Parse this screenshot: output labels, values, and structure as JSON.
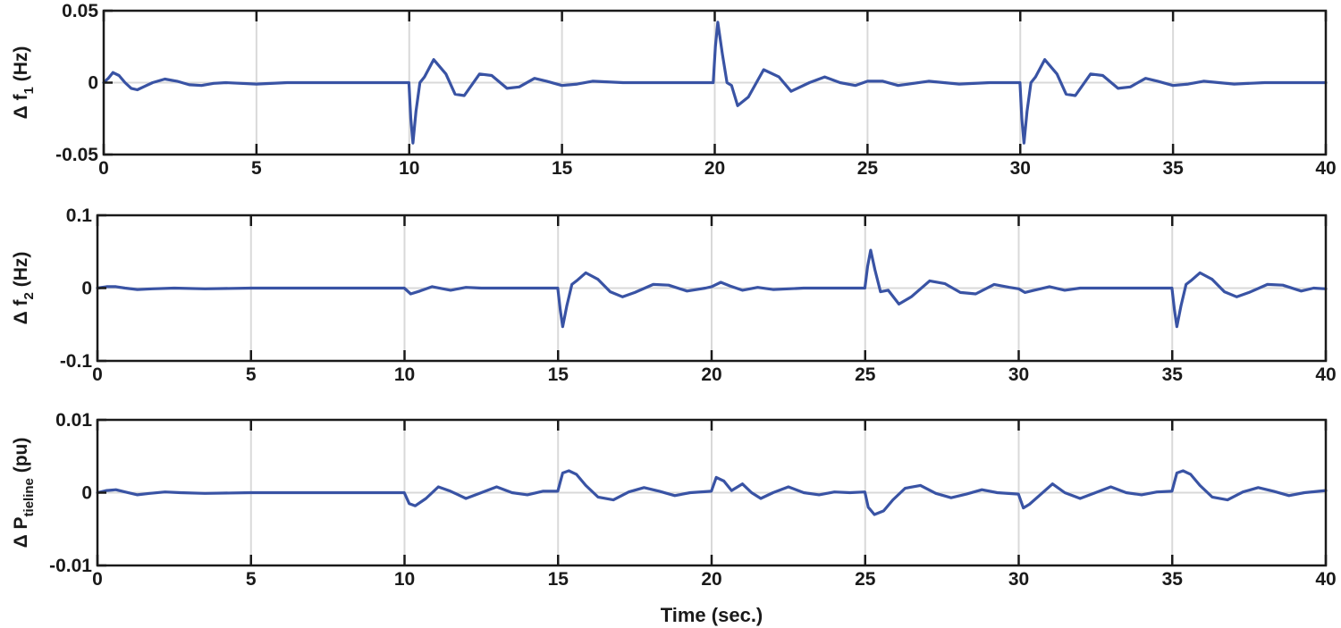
{
  "chart_data": [
    {
      "type": "line",
      "ylabel": {
        "prefix": "Δ f",
        "sub": "1",
        "suffix": " (Hz)"
      },
      "xlabel": "",
      "xlim": [
        0,
        40
      ],
      "ylim": [
        -0.05,
        0.05
      ],
      "xticks": [
        "0",
        "5",
        "10",
        "15",
        "20",
        "25",
        "30",
        "35",
        "40"
      ],
      "yticks": [
        "0.05",
        "0",
        "-0.05"
      ],
      "grid": "vertical",
      "line_color": "#3953a4",
      "grid_color": "#d9d9d9",
      "series": [
        {
          "x": [
            0,
            0.15,
            0.3,
            0.5,
            0.7,
            0.9,
            1.1,
            1.3,
            1.6,
            2.0,
            2.4,
            2.8,
            3.2,
            3.6,
            4.0,
            5,
            6,
            7,
            8,
            9,
            9.99,
            10.05,
            10.12,
            10.22,
            10.35,
            10.5,
            10.8,
            11.2,
            11.5,
            11.8,
            12.3,
            12.7,
            13.2,
            13.6,
            14.1,
            14.5,
            15,
            15.5,
            16,
            17,
            18,
            19,
            19.95,
            20.02,
            20.1,
            20.25,
            20.4,
            20.55,
            20.75,
            21.1,
            21.6,
            22.1,
            22.5,
            23.1,
            23.6,
            24.1,
            24.6,
            25,
            25.5,
            26,
            27,
            28,
            29,
            29.99,
            30.05,
            30.12,
            30.22,
            30.35,
            30.5,
            30.8,
            31.2,
            31.5,
            31.8,
            32.3,
            32.7,
            33.2,
            33.6,
            34.1,
            34.5,
            35,
            35.5,
            36,
            37,
            38,
            39,
            40
          ],
          "y": [
            0,
            0.003,
            0.007,
            0.005,
            0.0,
            -0.004,
            -0.005,
            -0.003,
            0.0,
            0.0025,
            0.001,
            -0.0015,
            -0.002,
            -0.0005,
            0.0,
            -0.001,
            0.0,
            0.0,
            0.0,
            0.0,
            0.0,
            -0.025,
            -0.042,
            -0.02,
            0.0,
            0.004,
            0.016,
            0.006,
            -0.008,
            -0.009,
            0.006,
            0.005,
            -0.004,
            -0.003,
            0.003,
            0.001,
            -0.002,
            -0.001,
            0.001,
            0.0,
            0.0,
            0.0,
            0.0,
            0.025,
            0.042,
            0.02,
            0.0,
            -0.002,
            -0.016,
            -0.01,
            0.009,
            0.004,
            -0.006,
            0.0,
            0.004,
            0.0,
            -0.002,
            0.001,
            0.001,
            -0.002,
            0.001,
            -0.001,
            0.0,
            0.0,
            -0.025,
            -0.042,
            -0.02,
            0.0,
            0.004,
            0.016,
            0.006,
            -0.008,
            -0.009,
            0.006,
            0.005,
            -0.004,
            -0.003,
            0.003,
            0.001,
            -0.002,
            -0.001,
            0.001,
            -0.001,
            0.0,
            0.0,
            0.0
          ]
        }
      ]
    },
    {
      "type": "line",
      "ylabel": {
        "prefix": "Δ f",
        "sub": "2",
        "suffix": " (Hz)"
      },
      "xlabel": "",
      "xlim": [
        0,
        40
      ],
      "ylim": [
        -0.1,
        0.1
      ],
      "xticks": [
        "0",
        "5",
        "10",
        "15",
        "20",
        "25",
        "30",
        "35",
        "40"
      ],
      "yticks": [
        "0.1",
        "0",
        "-0.1"
      ],
      "grid": "vertical",
      "line_color": "#3953a4",
      "grid_color": "#d9d9d9",
      "series": [
        {
          "x": [
            0,
            0.3,
            0.6,
            0.9,
            1.3,
            1.8,
            2.5,
            3.5,
            5,
            7,
            9,
            9.99,
            10.2,
            10.5,
            10.9,
            11.5,
            12,
            12.5,
            13,
            14,
            14.99,
            15.07,
            15.15,
            15.28,
            15.45,
            15.6,
            15.9,
            16.3,
            16.7,
            17.1,
            17.5,
            18.1,
            18.6,
            19.2,
            19.8,
            20,
            20.3,
            20.6,
            21,
            21.5,
            22,
            23,
            24,
            24.99,
            25.08,
            25.18,
            25.32,
            25.5,
            25.75,
            26.1,
            26.5,
            27.1,
            27.6,
            28.1,
            28.6,
            29.2,
            29.7,
            30,
            30.2,
            30.5,
            31,
            31.5,
            32,
            33,
            34,
            34.99,
            35.07,
            35.15,
            35.28,
            35.45,
            35.6,
            35.9,
            36.3,
            36.7,
            37.1,
            37.5,
            38.1,
            38.6,
            39.2,
            39.6,
            40
          ],
          "y": [
            0,
            0.002,
            0.002,
            0.0,
            -0.002,
            -0.001,
            0.0,
            -0.001,
            0.0,
            0.0,
            0.0,
            0.0,
            -0.008,
            -0.004,
            0.002,
            -0.003,
            0.001,
            0.0,
            0.0,
            0.0,
            0.0,
            -0.03,
            -0.053,
            -0.025,
            0.005,
            0.01,
            0.021,
            0.012,
            -0.005,
            -0.012,
            -0.006,
            0.005,
            0.004,
            -0.004,
            0.0,
            0.002,
            0.008,
            0.003,
            -0.003,
            0.001,
            -0.002,
            0.0,
            0.0,
            0.0,
            0.03,
            0.052,
            0.025,
            -0.005,
            -0.003,
            -0.022,
            -0.012,
            0.01,
            0.006,
            -0.006,
            -0.008,
            0.005,
            0.001,
            -0.001,
            -0.006,
            -0.003,
            0.002,
            -0.003,
            0.0,
            0.0,
            0.0,
            0.0,
            -0.03,
            -0.053,
            -0.025,
            0.005,
            0.01,
            0.021,
            0.012,
            -0.005,
            -0.012,
            -0.006,
            0.005,
            0.004,
            -0.004,
            0.0,
            -0.001
          ]
        }
      ]
    },
    {
      "type": "line",
      "ylabel": {
        "prefix": "Δ P",
        "sub": "tieline",
        "suffix": " (pu)"
      },
      "xlabel": "Time (sec.)",
      "xlim": [
        0,
        40
      ],
      "ylim": [
        -0.01,
        0.01
      ],
      "xticks": [
        "0",
        "5",
        "10",
        "15",
        "20",
        "25",
        "30",
        "35",
        "40"
      ],
      "yticks": [
        "0.01",
        "0",
        "-0.01"
      ],
      "grid": "vertical",
      "line_color": "#3953a4",
      "grid_color": "#d9d9d9",
      "series": [
        {
          "x": [
            0,
            0.3,
            0.6,
            0.9,
            1.3,
            1.7,
            2.2,
            2.7,
            3.5,
            5,
            7,
            9,
            9.99,
            10.15,
            10.35,
            10.7,
            11.1,
            11.5,
            12,
            12.5,
            13,
            13.5,
            14,
            14.5,
            14.99,
            15.15,
            15.35,
            15.6,
            15.9,
            16.3,
            16.8,
            17.3,
            17.8,
            18.3,
            18.8,
            19.3,
            19.99,
            20.15,
            20.4,
            20.65,
            21,
            21.3,
            21.6,
            22,
            22.5,
            23,
            23.5,
            24,
            24.5,
            24.99,
            25.1,
            25.3,
            25.6,
            25.9,
            26.3,
            26.8,
            27.3,
            27.8,
            28.3,
            28.8,
            29.3,
            29.99,
            30.15,
            30.35,
            30.7,
            31.1,
            31.5,
            32,
            32.5,
            33,
            33.5,
            34,
            34.5,
            34.99,
            35.15,
            35.35,
            35.6,
            35.9,
            36.3,
            36.8,
            37.3,
            37.8,
            38.3,
            38.8,
            39.3,
            40
          ],
          "y": [
            0,
            0.0003,
            0.0004,
            0.0001,
            -0.0003,
            -0.0001,
            0.0001,
            0.0,
            -0.0001,
            0.0,
            0.0,
            0.0,
            0.0,
            -0.0015,
            -0.0018,
            -0.0008,
            0.0008,
            0.0002,
            -0.0008,
            0.0,
            0.0008,
            0.0,
            -0.0003,
            0.0002,
            0.0002,
            0.0027,
            0.003,
            0.0025,
            0.001,
            -0.0006,
            -0.001,
            0.0001,
            0.0007,
            0.0002,
            -0.0004,
            0.0,
            0.0002,
            0.0021,
            0.0016,
            0.0003,
            0.0012,
            0.0,
            -0.0008,
            0.0,
            0.0008,
            0.0,
            -0.0003,
            0.0001,
            0.0,
            0.0001,
            -0.002,
            -0.003,
            -0.0025,
            -0.001,
            0.0006,
            0.001,
            -0.0001,
            -0.0007,
            -0.0002,
            0.0004,
            0.0,
            -0.0002,
            -0.0021,
            -0.0016,
            -0.0003,
            0.0012,
            0.0,
            -0.0008,
            0.0,
            0.0008,
            0.0,
            -0.0003,
            0.0001,
            0.0002,
            0.0027,
            0.003,
            0.0025,
            0.001,
            -0.0006,
            -0.001,
            0.0001,
            0.0007,
            0.0002,
            -0.0004,
            0.0,
            0.0003
          ]
        }
      ]
    }
  ]
}
